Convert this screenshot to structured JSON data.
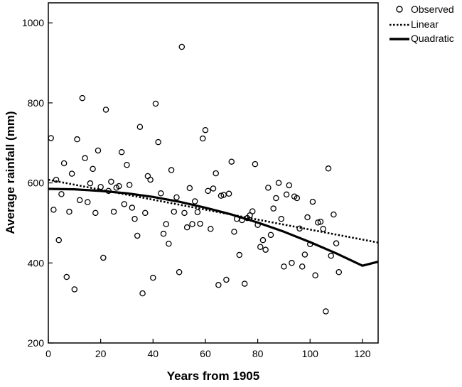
{
  "chart_data": {
    "type": "scatter",
    "title": "",
    "xlabel": "Years from 1905",
    "ylabel": "Average rainfall (mm)",
    "xlim": [
      0,
      126
    ],
    "ylim": [
      200,
      1050
    ],
    "x_ticks": [
      0,
      20,
      40,
      60,
      80,
      100,
      120
    ],
    "y_ticks": [
      200,
      400,
      600,
      800,
      1000
    ],
    "grid": false,
    "legend_position": "top-right",
    "legend": [
      "Observed",
      "Linear",
      "Quadratic"
    ],
    "series": [
      {
        "name": "Observed",
        "kind": "points",
        "marker": "open-circle",
        "x": [
          1,
          2,
          3,
          4,
          5,
          6,
          7,
          8,
          9,
          10,
          11,
          12,
          13,
          14,
          15,
          16,
          17,
          18,
          19,
          20,
          21,
          22,
          23,
          24,
          25,
          26,
          27,
          28,
          29,
          30,
          31,
          32,
          33,
          34,
          35,
          36,
          37,
          38,
          39,
          40,
          41,
          42,
          43,
          44,
          45,
          46,
          47,
          48,
          49,
          50,
          51,
          52,
          53,
          54,
          55,
          56,
          57,
          58,
          59,
          60,
          61,
          62,
          63,
          64,
          65,
          66,
          67,
          68,
          69,
          70,
          71,
          72,
          73,
          74,
          75,
          76,
          77,
          78,
          79,
          80,
          81,
          82,
          83,
          84,
          85,
          86,
          87,
          88,
          89,
          90,
          91,
          92,
          93,
          94,
          95,
          96,
          97,
          98,
          99,
          100,
          101,
          102,
          103,
          104,
          105,
          106,
          107,
          108,
          109,
          110,
          111
        ],
        "y": [
          712,
          533,
          608,
          457,
          572,
          649,
          365,
          528,
          623,
          334,
          709,
          557,
          812,
          662,
          552,
          599,
          635,
          525,
          681,
          590,
          413,
          783,
          580,
          603,
          528,
          588,
          592,
          677,
          547,
          645,
          595,
          538,
          510,
          468,
          740,
          324,
          525,
          617,
          608,
          363,
          798,
          702,
          574,
          473,
          497,
          448,
          632,
          528,
          564,
          377,
          940,
          525,
          489,
          587,
          497,
          554,
          527,
          498,
          711,
          732,
          580,
          485,
          586,
          624,
          345,
          568,
          570,
          358,
          573,
          653,
          478,
          510,
          420,
          507,
          348,
          512,
          519,
          529,
          647,
          495,
          440,
          457,
          433,
          588,
          470,
          536,
          562,
          600,
          510,
          391,
          571,
          594,
          400,
          566,
          562,
          486,
          391,
          421,
          514,
          447,
          553,
          369,
          501,
          503,
          485,
          279,
          636,
          418,
          521,
          449,
          377
        ]
      },
      {
        "name": "Linear",
        "kind": "line",
        "style": "dotted",
        "x": [
          0,
          126
        ],
        "y": [
          608,
          451
        ]
      },
      {
        "name": "Quadratic",
        "kind": "line",
        "style": "solid",
        "x": [
          0,
          10,
          20,
          30,
          40,
          50,
          60,
          70,
          80,
          90,
          100,
          110,
          120,
          126
        ],
        "y": [
          585,
          584,
          580,
          574,
          565,
          553,
          538,
          521,
          501,
          478,
          452,
          424,
          393,
          403
        ]
      }
    ]
  }
}
